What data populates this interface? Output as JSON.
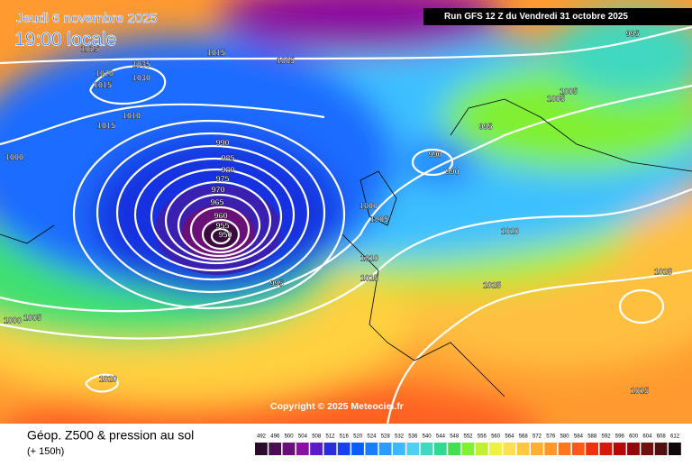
{
  "header": {
    "date": "Jeudi 6 novembre 2025",
    "time": "19:00 locale",
    "run": "Run GFS 12 Z du Vendredi 31 octobre 2025"
  },
  "copyright": "Copyright © 2025 Meteociel.fr",
  "footer": {
    "title": "Géop. Z500 & pression au sol",
    "subtitle": "(+ 150h)"
  },
  "scale": {
    "labels": [
      "492",
      "496",
      "500",
      "504",
      "508",
      "512",
      "516",
      "520",
      "524",
      "528",
      "532",
      "536",
      "540",
      "544",
      "548",
      "552",
      "556",
      "560",
      "564",
      "568",
      "572",
      "576",
      "580",
      "584",
      "588",
      "592",
      "596",
      "600",
      "604",
      "608",
      "612"
    ],
    "colors": [
      "#2a0b2c",
      "#4b0d52",
      "#6a0f78",
      "#8a10a0",
      "#5a1cc8",
      "#2a2ce0",
      "#1840f0",
      "#0a5cff",
      "#1a7cff",
      "#2a9cff",
      "#3cb8ff",
      "#50d0f0",
      "#40d8c0",
      "#30d890",
      "#40e050",
      "#80f030",
      "#c0f030",
      "#f0f040",
      "#ffe050",
      "#ffc840",
      "#ffb030",
      "#ff9828",
      "#ff7820",
      "#ff5818",
      "#f03010",
      "#d81808",
      "#b80808",
      "#900808",
      "#701010",
      "#501010",
      "#100808"
    ]
  },
  "isobar_labels": [
    "1025",
    "1035",
    "1020",
    "1030",
    "1015",
    "1015",
    "1005",
    "1010",
    "1015",
    "1000",
    "990",
    "985",
    "980",
    "975",
    "970",
    "965",
    "960",
    "955",
    "950",
    "995",
    "990",
    "990",
    "995",
    "995",
    "1005",
    "1005",
    "1000",
    "1005",
    "1020",
    "1010",
    "1015",
    "1025",
    "1025",
    "1000",
    "1005",
    "1020",
    "1015"
  ]
}
